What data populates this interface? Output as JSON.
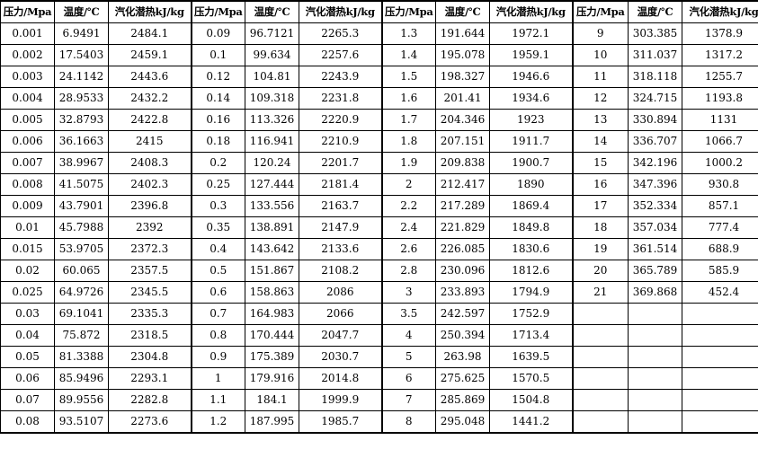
{
  "headers": [
    "压力/Mpa",
    "温度/℃",
    "汽化潜热kJ/kg",
    "压力/Mpa",
    "温度/℃",
    "汽化潜热kJ/kg",
    "压力/Mpa",
    "温度/℃",
    "汽化潜热kJ/kg",
    "压力/Mpa",
    "温度/℃",
    "汽化潜热kJ/kg"
  ],
  "rows": [
    [
      "0.001",
      "6.9491",
      "2484.1",
      "0.09",
      "96.7121",
      "2265.3",
      "1.3",
      "191.644",
      "1972.1",
      "9",
      "303.385",
      "1378.9"
    ],
    [
      "0.002",
      "17.5403",
      "2459.1",
      "0.1",
      "99.634",
      "2257.6",
      "1.4",
      "195.078",
      "1959.1",
      "10",
      "311.037",
      "1317.2"
    ],
    [
      "0.003",
      "24.1142",
      "2443.6",
      "0.12",
      "104.81",
      "2243.9",
      "1.5",
      "198.327",
      "1946.6",
      "11",
      "318.118",
      "1255.7"
    ],
    [
      "0.004",
      "28.9533",
      "2432.2",
      "0.14",
      "109.318",
      "2231.8",
      "1.6",
      "201.41",
      "1934.6",
      "12",
      "324.715",
      "1193.8"
    ],
    [
      "0.005",
      "32.8793",
      "2422.8",
      "0.16",
      "113.326",
      "2220.9",
      "1.7",
      "204.346",
      "1923",
      "13",
      "330.894",
      "1131"
    ],
    [
      "0.006",
      "36.1663",
      "2415",
      "0.18",
      "116.941",
      "2210.9",
      "1.8",
      "207.151",
      "1911.7",
      "14",
      "336.707",
      "1066.7"
    ],
    [
      "0.007",
      "38.9967",
      "2408.3",
      "0.2",
      "120.24",
      "2201.7",
      "1.9",
      "209.838",
      "1900.7",
      "15",
      "342.196",
      "1000.2"
    ],
    [
      "0.008",
      "41.5075",
      "2402.3",
      "0.25",
      "127.444",
      "2181.4",
      "2",
      "212.417",
      "1890",
      "16",
      "347.396",
      "930.8"
    ],
    [
      "0.009",
      "43.7901",
      "2396.8",
      "0.3",
      "133.556",
      "2163.7",
      "2.2",
      "217.289",
      "1869.4",
      "17",
      "352.334",
      "857.1"
    ],
    [
      "0.01",
      "45.7988",
      "2392",
      "0.35",
      "138.891",
      "2147.9",
      "2.4",
      "221.829",
      "1849.8",
      "18",
      "357.034",
      "777.4"
    ],
    [
      "0.015",
      "53.9705",
      "2372.3",
      "0.4",
      "143.642",
      "2133.6",
      "2.6",
      "226.085",
      "1830.6",
      "19",
      "361.514",
      "688.9"
    ],
    [
      "0.02",
      "60.065",
      "2357.5",
      "0.5",
      "151.867",
      "2108.2",
      "2.8",
      "230.096",
      "1812.6",
      "20",
      "365.789",
      "585.9"
    ],
    [
      "0.025",
      "64.9726",
      "2345.5",
      "0.6",
      "158.863",
      "2086",
      "3",
      "233.893",
      "1794.9",
      "21",
      "369.868",
      "452.4"
    ],
    [
      "0.03",
      "69.1041",
      "2335.3",
      "0.7",
      "164.983",
      "2066",
      "3.5",
      "242.597",
      "1752.9",
      "",
      "",
      ""
    ],
    [
      "0.04",
      "75.872",
      "2318.5",
      "0.8",
      "170.444",
      "2047.7",
      "4",
      "250.394",
      "1713.4",
      "",
      "",
      ""
    ],
    [
      "0.05",
      "81.3388",
      "2304.8",
      "0.9",
      "175.389",
      "2030.7",
      "5",
      "263.98",
      "1639.5",
      "",
      "",
      ""
    ],
    [
      "0.06",
      "85.9496",
      "2293.1",
      "1",
      "179.916",
      "2014.8",
      "6",
      "275.625",
      "1570.5",
      "",
      "",
      ""
    ],
    [
      "0.07",
      "89.9556",
      "2282.8",
      "1.1",
      "184.1",
      "1999.9",
      "7",
      "285.869",
      "1504.8",
      "",
      "",
      ""
    ],
    [
      "0.08",
      "93.5107",
      "2273.6",
      "1.2",
      "187.995",
      "1985.7",
      "8",
      "295.048",
      "1441.2",
      "",
      "",
      ""
    ]
  ]
}
